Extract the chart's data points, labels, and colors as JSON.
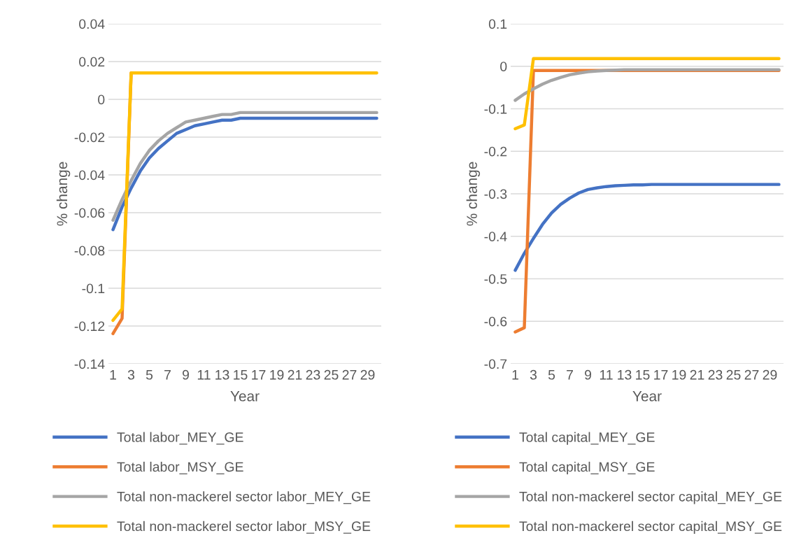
{
  "chart_data": [
    {
      "type": "line",
      "xlabel": "Year",
      "ylabel": "% change",
      "categories": [
        "1",
        null,
        "3",
        null,
        "5",
        null,
        "7",
        null,
        "9",
        null,
        "11",
        null,
        "13",
        null,
        "15",
        null,
        "17",
        null,
        "19",
        null,
        "21",
        null,
        "23",
        null,
        "25",
        null,
        "27",
        null,
        "29",
        null
      ],
      "ylim": [
        -0.14,
        0.04
      ],
      "yticks": [
        -0.14,
        -0.12,
        -0.1,
        -0.08,
        -0.06,
        -0.04,
        -0.02,
        0,
        0.02,
        0.04
      ],
      "grid": "y",
      "legend": "bottom",
      "line_style": "solid",
      "marker": "none",
      "series": [
        {
          "name": "Total labor_MEY_GE",
          "color": "#4472c4",
          "values": [
            -0.069,
            -0.057,
            -0.047,
            -0.038,
            -0.031,
            -0.026,
            -0.022,
            -0.018,
            -0.016,
            -0.014,
            -0.013,
            -0.012,
            -0.011,
            -0.011,
            -0.01,
            -0.01,
            -0.01,
            -0.01,
            -0.01,
            -0.01,
            -0.01,
            -0.01,
            -0.01,
            -0.01,
            -0.01,
            -0.01,
            -0.01,
            -0.01,
            -0.01,
            -0.01
          ]
        },
        {
          "name": "Total labor_MSY_GE",
          "color": "#ed7d31",
          "values": [
            -0.124,
            -0.116,
            0.014,
            null,
            null,
            null,
            null,
            null,
            null,
            null,
            null,
            null,
            null,
            null,
            null,
            null,
            null,
            null,
            null,
            null,
            null,
            null,
            null,
            null,
            null,
            null,
            null,
            null,
            null,
            null
          ]
        },
        {
          "name": "Total non-mackerel sector labor_MEY_GE",
          "color": "#a5a5a5",
          "values": [
            -0.064,
            -0.053,
            -0.043,
            -0.034,
            -0.027,
            -0.022,
            -0.018,
            -0.015,
            -0.012,
            -0.011,
            -0.01,
            -0.009,
            -0.008,
            -0.008,
            -0.007,
            -0.007,
            -0.007,
            -0.007,
            -0.007,
            -0.007,
            -0.007,
            -0.007,
            -0.007,
            -0.007,
            -0.007,
            -0.007,
            -0.007,
            -0.007,
            -0.007,
            -0.007
          ]
        },
        {
          "name": "Total non-mackerel sector labor_MSY_GE",
          "color": "#ffc000",
          "values": [
            -0.117,
            -0.111,
            0.014,
            0.014,
            0.014,
            0.014,
            0.014,
            0.014,
            0.014,
            0.014,
            0.014,
            0.014,
            0.014,
            0.014,
            0.014,
            0.014,
            0.014,
            0.014,
            0.014,
            0.014,
            0.014,
            0.014,
            0.014,
            0.014,
            0.014,
            0.014,
            0.014,
            0.014,
            0.014,
            0.014
          ]
        }
      ]
    },
    {
      "type": "line",
      "xlabel": "Year",
      "ylabel": "% change",
      "categories": [
        "1",
        null,
        "3",
        null,
        "5",
        null,
        "7",
        null,
        "9",
        null,
        "11",
        null,
        "13",
        null,
        "15",
        null,
        "17",
        null,
        "19",
        null,
        "21",
        null,
        "23",
        null,
        "25",
        null,
        "27",
        null,
        "29",
        null
      ],
      "ylim": [
        -0.7,
        0.1
      ],
      "yticks": [
        -0.7,
        -0.6,
        -0.5,
        -0.4,
        -0.3,
        -0.2,
        -0.1,
        0,
        0.1
      ],
      "grid": "y",
      "legend": "bottom",
      "line_style": "solid",
      "marker": "none",
      "series": [
        {
          "name": "Total capital_MEY_GE",
          "color": "#4472c4",
          "values": [
            -0.48,
            -0.44,
            -0.405,
            -0.372,
            -0.345,
            -0.325,
            -0.31,
            -0.298,
            -0.29,
            -0.286,
            -0.283,
            -0.281,
            -0.28,
            -0.279,
            -0.279,
            -0.278,
            -0.278,
            -0.278,
            -0.278,
            -0.278,
            -0.278,
            -0.278,
            -0.278,
            -0.278,
            -0.278,
            -0.278,
            -0.278,
            -0.278,
            -0.278,
            -0.278
          ]
        },
        {
          "name": "Total capital_MSY_GE",
          "color": "#ed7d31",
          "values": [
            -0.625,
            -0.615,
            -0.01,
            -0.01,
            -0.01,
            -0.01,
            -0.01,
            -0.01,
            -0.01,
            -0.01,
            -0.01,
            -0.01,
            -0.01,
            -0.01,
            -0.01,
            -0.01,
            -0.01,
            -0.01,
            -0.01,
            -0.01,
            -0.01,
            -0.01,
            -0.01,
            -0.01,
            -0.01,
            -0.01,
            -0.01,
            -0.01,
            -0.01,
            -0.01
          ]
        },
        {
          "name": "Total non-mackerel sector capital_MEY_GE",
          "color": "#a5a5a5",
          "values": [
            -0.08,
            -0.065,
            -0.053,
            -0.042,
            -0.033,
            -0.026,
            -0.02,
            -0.016,
            -0.013,
            -0.011,
            -0.01,
            -0.009,
            -0.008,
            -0.008,
            -0.008,
            -0.008,
            -0.008,
            -0.008,
            -0.008,
            -0.008,
            -0.008,
            -0.008,
            -0.008,
            -0.008,
            -0.008,
            -0.008,
            -0.008,
            -0.008,
            -0.008,
            -0.008
          ]
        },
        {
          "name": "Total non-mackerel sector capital_MSY_GE",
          "color": "#ffc000",
          "values": [
            -0.147,
            -0.138,
            0.018,
            0.018,
            0.018,
            0.018,
            0.018,
            0.018,
            0.018,
            0.018,
            0.018,
            0.018,
            0.018,
            0.018,
            0.018,
            0.018,
            0.018,
            0.018,
            0.018,
            0.018,
            0.018,
            0.018,
            0.018,
            0.018,
            0.018,
            0.018,
            0.018,
            0.018,
            0.018,
            0.018
          ]
        }
      ]
    }
  ]
}
